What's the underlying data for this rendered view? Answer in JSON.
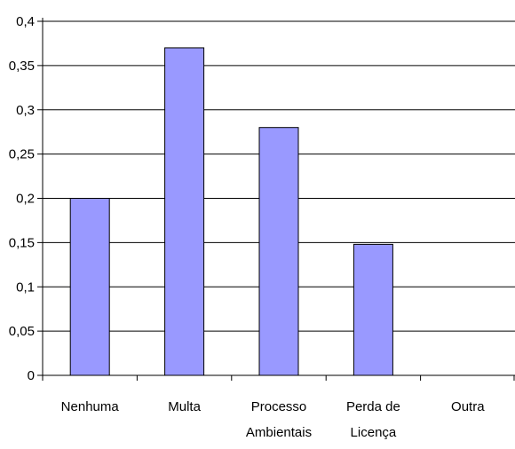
{
  "chart_data": {
    "type": "bar",
    "title": "",
    "xlabel": "",
    "ylabel": "",
    "categories": [
      [
        "Nenhuma"
      ],
      [
        "Multa"
      ],
      [
        "Processo",
        "Ambientais"
      ],
      [
        "Perda de",
        "Licença"
      ],
      [
        "Outra"
      ]
    ],
    "values": [
      0.2,
      0.37,
      0.28,
      0.148,
      0
    ],
    "ylim": [
      0,
      0.4
    ],
    "yticks": [
      "0",
      "0,05",
      "0,1",
      "0,15",
      "0,2",
      "0,25",
      "0,3",
      "0,35",
      "0,4"
    ],
    "grid": true,
    "legend": "none",
    "bar_color": "#9999ff",
    "bar_edge_color": "#000000"
  }
}
